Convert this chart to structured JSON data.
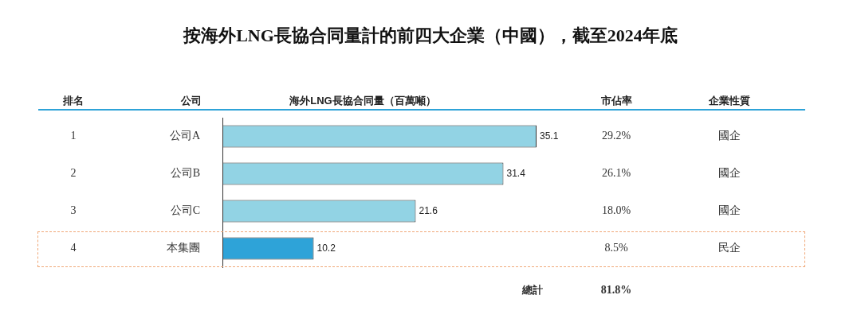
{
  "chart_data": {
    "type": "bar",
    "orientation": "horizontal",
    "title": "按海外LNG長協合同量計的前四大企業（中國），截至2024年底",
    "xlabel": "海外LNG長協合同量（百萬噸）",
    "categories": [
      "公司A",
      "公司B",
      "公司C",
      "本集團"
    ],
    "values": [
      35.1,
      31.4,
      21.6,
      10.2
    ],
    "colors": [
      "#92d3e4",
      "#92d3e4",
      "#92d3e4",
      "#2ea3d8"
    ],
    "data_labels": true,
    "annotations": [
      "排名",
      "公司",
      "市佔率",
      "企業性質",
      "總計",
      "81.8%",
      "1",
      "29.2%",
      "國企",
      "2",
      "26.1%",
      "國企",
      "3",
      "18.0%",
      "國企",
      "4",
      "8.5%",
      "民企"
    ]
  }
}
